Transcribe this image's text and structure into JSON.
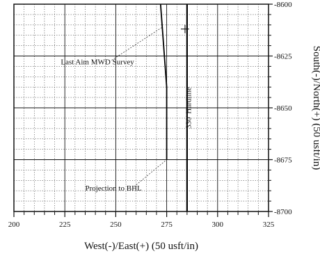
{
  "chart_data": {
    "type": "line",
    "title": "",
    "xlabel": "West(-)/East(+) (50 usft/in)",
    "ylabel": "South(-)/North(+) (50 usft/in)",
    "xlim": [
      200,
      325
    ],
    "ylim": [
      -8700,
      -8600
    ],
    "x_ticks": [
      200,
      225,
      250,
      275,
      300,
      325
    ],
    "y_ticks": [
      -8600,
      -8625,
      -8650,
      -8675,
      -8700
    ],
    "x_tick_labels": [
      "200",
      "225",
      "250",
      "275",
      "300",
      "325"
    ],
    "y_tick_labels": [
      "-8600",
      "-8625",
      "-8650",
      "-8675",
      "-8700"
    ],
    "grid": true,
    "series": [
      {
        "role": "well-path",
        "x": [
          272,
          275,
          275
        ],
        "y": [
          -8600,
          -8640,
          -8675
        ]
      },
      {
        "role": "hardline",
        "x": [
          285,
          285
        ],
        "y": [
          -8600,
          -8700
        ]
      }
    ],
    "markers": [
      {
        "symbol": "+",
        "x": 284,
        "y": -8612
      }
    ],
    "annotations": [
      {
        "text": "Last Aim MWD Survey",
        "anchor": {
          "x": 223,
          "y": -8629
        },
        "leader": {
          "from": {
            "x": 248,
            "y": -8627
          },
          "to": {
            "x": 273,
            "y": -8611
          }
        }
      },
      {
        "text": "Projection to BHL",
        "anchor": {
          "x": 235,
          "y": -8690
        },
        "leader": {
          "from": {
            "x": 259,
            "y": -8688
          },
          "to": {
            "x": 275,
            "y": -8675
          }
        }
      },
      {
        "text": "330' Hardline",
        "anchor": {
          "x": 287,
          "y": -8650
        },
        "rotation": "vertical"
      }
    ]
  }
}
